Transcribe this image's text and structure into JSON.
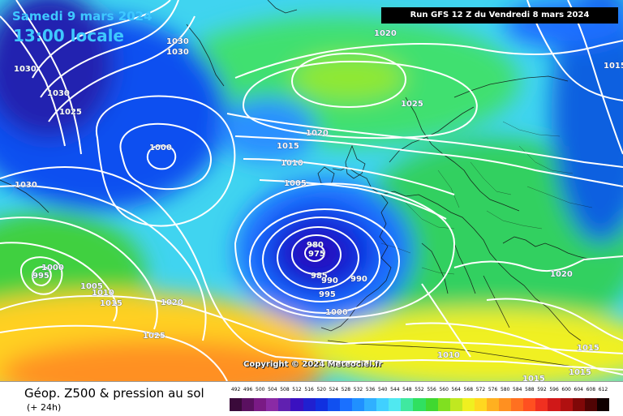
{
  "header": {
    "date_label": "Samedi 9 mars 2024",
    "time_label": "13:00 locale",
    "run_label": "Run GFS 12 Z du Vendredi 8 mars 2024"
  },
  "copyright": "Copyright © 2024 Meteociel.fr",
  "footer": {
    "title": "Géop. Z500 & pression au sol",
    "subtitle": "(+ 24h)"
  },
  "scale": {
    "values": [
      "492",
      "496",
      "500",
      "504",
      "508",
      "512",
      "516",
      "520",
      "524",
      "528",
      "532",
      "536",
      "540",
      "544",
      "548",
      "552",
      "556",
      "560",
      "564",
      "568",
      "572",
      "576",
      "580",
      "584",
      "588",
      "592",
      "596",
      "600",
      "604",
      "608",
      "612"
    ],
    "colors": [
      "#3a0a3a",
      "#5a1060",
      "#7a1a85",
      "#8a2aa5",
      "#6020b0",
      "#3a10c0",
      "#2020d0",
      "#1030e0",
      "#1050f0",
      "#1a70ff",
      "#2090ff",
      "#30b0ff",
      "#40d0ff",
      "#50e8f0",
      "#40e8a0",
      "#30e060",
      "#40d830",
      "#80e020",
      "#c0e820",
      "#f0f020",
      "#ffd820",
      "#ffb020",
      "#ff9020",
      "#ff7020",
      "#ff5020",
      "#f03020",
      "#d01818",
      "#b01010",
      "#800808",
      "#500404",
      "#100000"
    ]
  },
  "map": {
    "isobar_labels": [
      {
        "text": "1030"
      },
      {
        "text": "1030"
      },
      {
        "text": "1030"
      },
      {
        "text": "1030"
      },
      {
        "text": "1025"
      },
      {
        "text": "1030"
      },
      {
        "text": "1000"
      },
      {
        "text": "1000"
      },
      {
        "text": "995"
      },
      {
        "text": "1005"
      },
      {
        "text": "1010"
      },
      {
        "text": "1015"
      },
      {
        "text": "1020"
      },
      {
        "text": "1025"
      },
      {
        "text": "1020"
      },
      {
        "text": "1025"
      },
      {
        "text": "1020"
      },
      {
        "text": "1015"
      },
      {
        "text": "1010"
      },
      {
        "text": "1005"
      },
      {
        "text": "980"
      },
      {
        "text": "975"
      },
      {
        "text": "985"
      },
      {
        "text": "990"
      },
      {
        "text": "990"
      },
      {
        "text": "995"
      },
      {
        "text": "1000"
      },
      {
        "text": "1015"
      },
      {
        "text": "1020"
      },
      {
        "text": "1010"
      },
      {
        "text": "1015"
      },
      {
        "text": "1015"
      },
      {
        "text": "1015"
      }
    ]
  }
}
